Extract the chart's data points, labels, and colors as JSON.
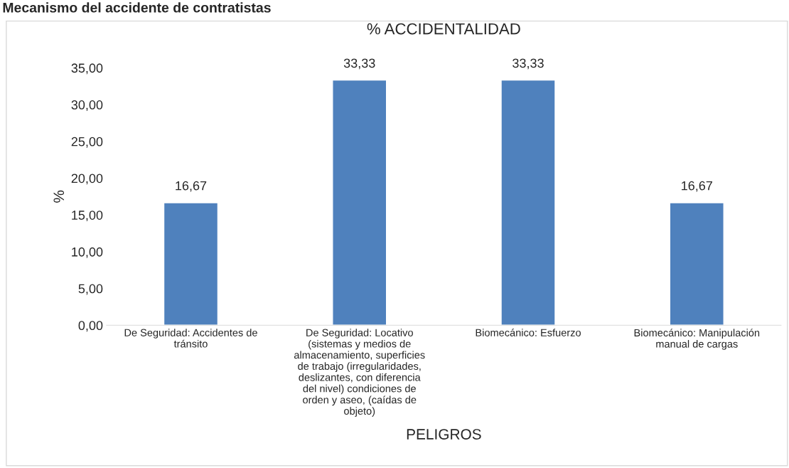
{
  "chart_data": {
    "type": "bar",
    "title": "% ACCIDENTALIDAD",
    "xlabel": "PELIGROS",
    "ylabel": "%",
    "annotations": [
      "Mecanismo del accidente de contratistas"
    ],
    "categories": [
      "De Seguridad: Accidentes de tránsito",
      "De Seguridad: Locativo (sistemas y medios de almacenamiento, superficies de trabajo (irregularidades, deslizantes, con diferencia del nivel) condiciones de orden y aseo, (caídas de objeto)",
      "Biomecánico: Esfuerzo",
      "Biomecánico: Manipulación manual de cargas"
    ],
    "values": [
      16.67,
      33.33,
      33.33,
      16.67
    ],
    "value_labels": [
      "16,67",
      "33,33",
      "33,33",
      "16,67"
    ],
    "color": "#4f81bd",
    "ylim": [
      0,
      35
    ],
    "yticks": [
      {
        "value": 0,
        "label": "0,00"
      },
      {
        "value": 5,
        "label": "5,00"
      },
      {
        "value": 10,
        "label": "10,00"
      },
      {
        "value": 15,
        "label": "15,00"
      },
      {
        "value": 20,
        "label": "20,00"
      },
      {
        "value": 25,
        "label": "25,00"
      },
      {
        "value": 30,
        "label": "30,00"
      },
      {
        "value": 35,
        "label": "35,00"
      }
    ],
    "grid": false,
    "legend": false
  }
}
